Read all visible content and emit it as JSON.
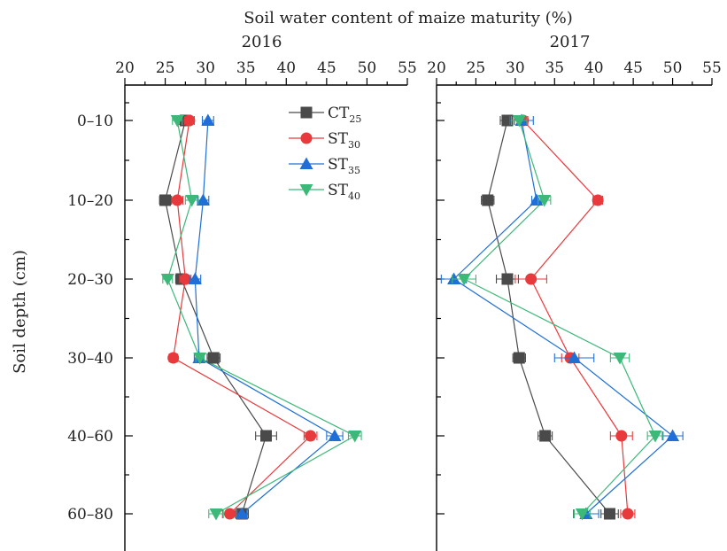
{
  "chart_data": {
    "type": "line",
    "title": "Soil water content of maize maturity (%)",
    "ylabel": "Soil depth (cm)",
    "depth_categories": [
      "0–10",
      "10–20",
      "20–30",
      "30–40",
      "40–60",
      "60–80"
    ],
    "xlim": [
      20,
      55
    ],
    "xticks": [
      "20",
      "25",
      "30",
      "35",
      "40",
      "45",
      "50",
      "55"
    ],
    "legend": [
      {
        "key": "CT",
        "base": "CT",
        "sub": "25",
        "color": "#4a4a4a",
        "marker": "square"
      },
      {
        "key": "ST30",
        "base": "ST",
        "sub": "30",
        "color": "#e8393c",
        "marker": "circle"
      },
      {
        "key": "ST35",
        "base": "ST",
        "sub": "35",
        "color": "#1f6fd6",
        "marker": "triangle-up"
      },
      {
        "key": "ST40",
        "base": "ST",
        "sub": "40",
        "color": "#3cb878",
        "marker": "triangle-down"
      }
    ],
    "panels": [
      {
        "year": "2016",
        "series": [
          {
            "key": "CT",
            "values": [
              27.5,
              25.0,
              27.0,
              31.0,
              37.5,
              34.5
            ],
            "errors": [
              0.8,
              0.7,
              0.7,
              0.8,
              1.3,
              0.8
            ]
          },
          {
            "key": "ST30",
            "values": [
              28.0,
              26.5,
              27.5,
              26.0,
              43.0,
              33.0
            ],
            "errors": [
              0.6,
              0.7,
              0.7,
              0.5,
              0.8,
              0.9
            ]
          },
          {
            "key": "ST35",
            "values": [
              30.3,
              29.7,
              28.7,
              29.2,
              46.0,
              34.5
            ],
            "errors": [
              0.7,
              0.7,
              0.7,
              0.6,
              1.0,
              0.6
            ]
          },
          {
            "key": "ST40",
            "values": [
              26.5,
              28.3,
              25.3,
              29.3,
              48.5,
              31.3
            ],
            "errors": [
              0.6,
              0.8,
              0.6,
              0.5,
              0.8,
              0.9
            ]
          }
        ]
      },
      {
        "year": "2017",
        "series": [
          {
            "key": "CT",
            "values": [
              29.0,
              26.5,
              29.0,
              30.5,
              33.8,
              42.0
            ],
            "errors": [
              0.9,
              0.8,
              1.4,
              0.8,
              0.9,
              1.1
            ]
          },
          {
            "key": "ST30",
            "values": [
              31.0,
              40.5,
              32.0,
              37.0,
              43.5,
              44.3
            ],
            "errors": [
              0.6,
              0.6,
              2.0,
              1.1,
              1.4,
              0.9
            ]
          },
          {
            "key": "ST35",
            "values": [
              30.8,
              32.7,
              22.2,
              37.5,
              50.0,
              39.0
            ],
            "errors": [
              1.5,
              0.6,
              1.6,
              2.5,
              1.3,
              1.6
            ]
          },
          {
            "key": "ST40",
            "values": [
              30.5,
              33.7,
              23.5,
              43.3,
              47.8,
              38.5
            ],
            "errors": [
              1.0,
              0.8,
              1.5,
              1.2,
              1.0,
              1.0
            ]
          }
        ]
      }
    ]
  }
}
